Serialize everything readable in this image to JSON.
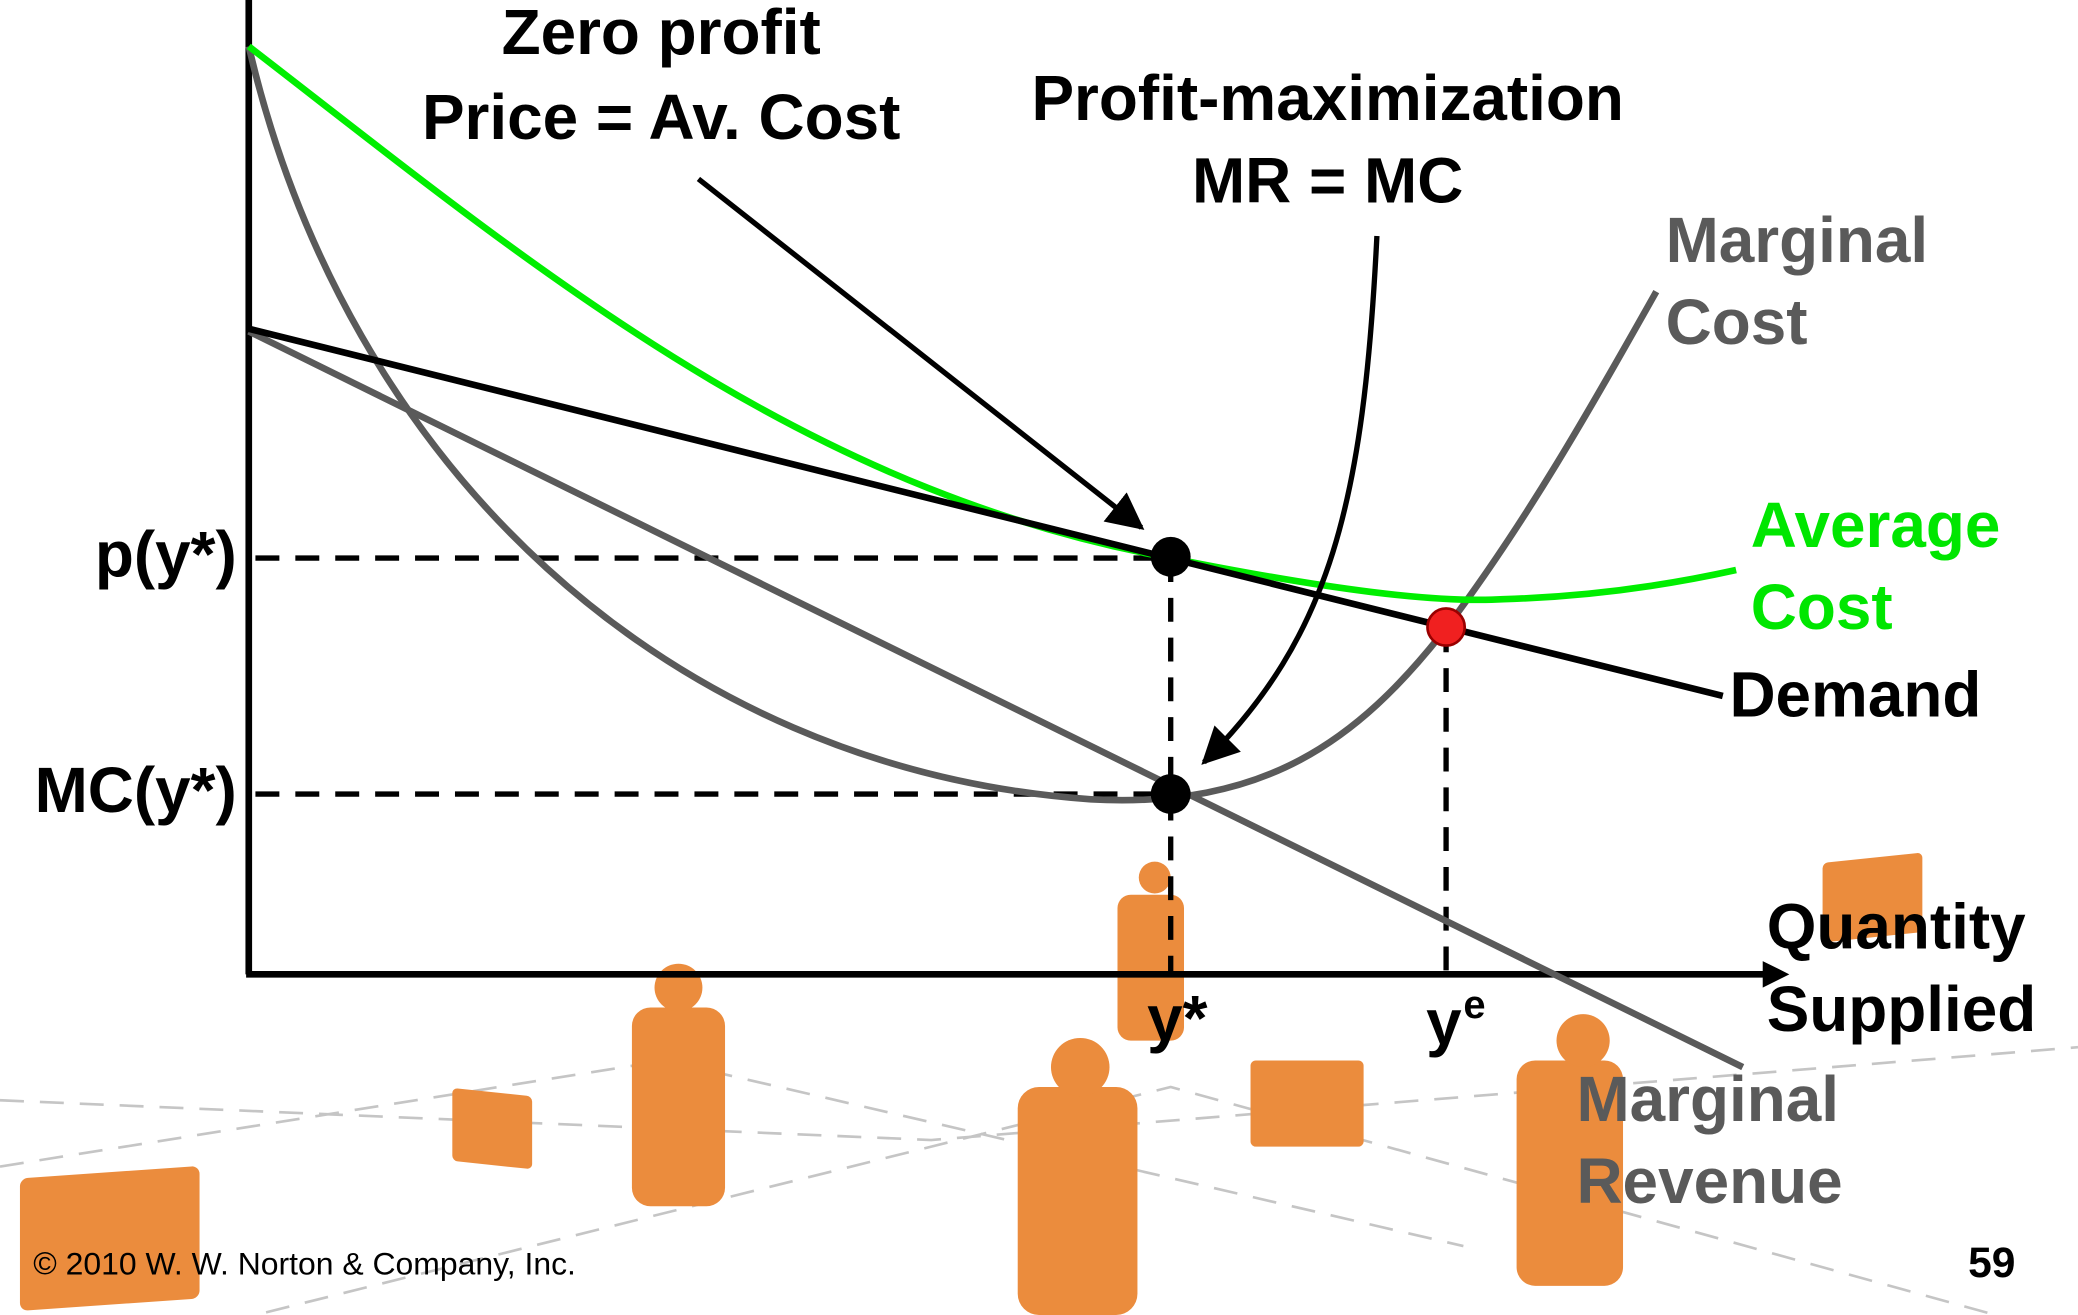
{
  "annotations": {
    "zero_profit": {
      "line1": "Zero profit",
      "line2": "Price = Av. Cost"
    },
    "profit_max": {
      "line1": "Profit-maximization",
      "line2": "MR = MC"
    }
  },
  "curves": {
    "marginal_cost": {
      "line1": "Marginal",
      "line2": "Cost"
    },
    "average_cost": {
      "line1": "Average",
      "line2": "Cost"
    },
    "demand": "Demand",
    "marginal_revenue": {
      "line1": "Marginal",
      "line2": "Revenue"
    }
  },
  "axes": {
    "y_labels": {
      "price": "p(y*)",
      "marginal_cost": "MC(y*)"
    },
    "x_labels": {
      "y_star": "y*",
      "y_e": {
        "base": "y",
        "superscript": "e"
      }
    },
    "x_title": {
      "line1": "Quantity",
      "line2": "Supplied"
    }
  },
  "footer": {
    "copyright": "© 2010 W. W. Norton & Company, Inc.",
    "page": "59"
  }
}
